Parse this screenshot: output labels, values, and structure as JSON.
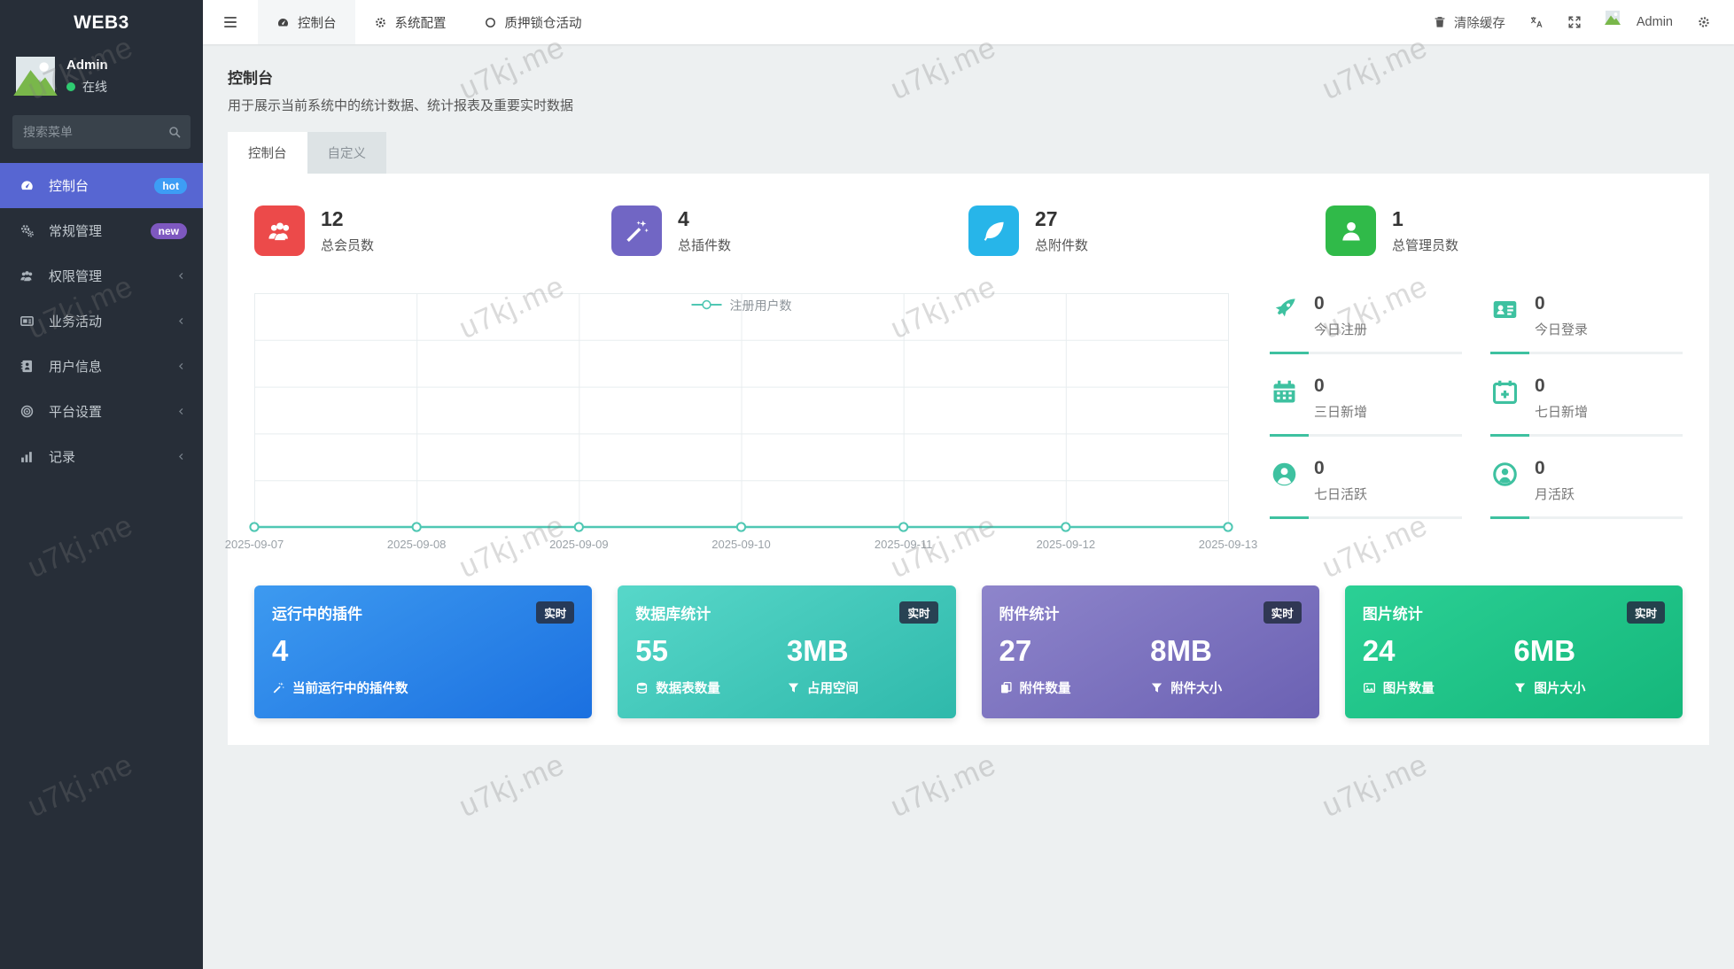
{
  "app": {
    "brand": "WEB3"
  },
  "watermark": {
    "text": "u7kj.me"
  },
  "sidebar": {
    "user": {
      "name": "Admin",
      "status_label": "在线"
    },
    "search": {
      "placeholder": "搜索菜单"
    },
    "items": [
      {
        "label": "控制台",
        "icon": "dashboard",
        "badge": "hot",
        "active": true
      },
      {
        "label": "常规管理",
        "icon": "cogs",
        "badge": "new"
      },
      {
        "label": "权限管理",
        "icon": "users",
        "chevron": true
      },
      {
        "label": "业务活动",
        "icon": "newspaper",
        "chevron": true
      },
      {
        "label": "用户信息",
        "icon": "address-book",
        "chevron": true
      },
      {
        "label": "平台设置",
        "icon": "bullseye",
        "chevron": true
      },
      {
        "label": "记录",
        "icon": "bar-chart",
        "chevron": true
      }
    ]
  },
  "topbar": {
    "tabs": [
      {
        "label": "控制台",
        "icon": "dashboard",
        "active": true
      },
      {
        "label": "系统配置",
        "icon": "gear"
      },
      {
        "label": "质押锁仓活动",
        "icon": "circle-o"
      }
    ],
    "clear_cache": "清除缓存",
    "user": "Admin"
  },
  "page": {
    "title": "控制台",
    "subtitle": "用于展示当前系统中的统计数据、统计报表及重要实时数据",
    "tabs": [
      {
        "label": "控制台",
        "active": true
      },
      {
        "label": "自定义"
      }
    ]
  },
  "summary_stats": [
    {
      "value": "12",
      "label": "总会员数",
      "icon": "users",
      "color": "#ec4a4a"
    },
    {
      "value": "4",
      "label": "总插件数",
      "icon": "magic-wand",
      "color": "#7166c4"
    },
    {
      "value": "27",
      "label": "总附件数",
      "icon": "leaf",
      "color": "#27b5e9"
    },
    {
      "value": "1",
      "label": "总管理员数",
      "icon": "user",
      "color": "#30ba49"
    }
  ],
  "chart_data": {
    "type": "line",
    "x": [
      "2025-09-07",
      "2025-09-08",
      "2025-09-09",
      "2025-09-10",
      "2025-09-11",
      "2025-09-12",
      "2025-09-13"
    ],
    "series": [
      {
        "name": "注册用户数",
        "values": [
          0,
          0,
          0,
          0,
          0,
          0,
          0
        ]
      }
    ],
    "title": "",
    "xlabel": "",
    "ylabel": "",
    "ylim": [
      0,
      1
    ],
    "grid": true,
    "legend_position": "top-center",
    "line_color": "#4fc7b3"
  },
  "mini_stats": [
    {
      "value": "0",
      "label": "今日注册",
      "icon": "rocket"
    },
    {
      "value": "0",
      "label": "今日登录",
      "icon": "id-card"
    },
    {
      "value": "0",
      "label": "三日新增",
      "icon": "calendar"
    },
    {
      "value": "0",
      "label": "七日新增",
      "icon": "calendar-plus"
    },
    {
      "value": "0",
      "label": "七日活跃",
      "icon": "user-circle"
    },
    {
      "value": "0",
      "label": "月活跃",
      "icon": "user-circle-o"
    }
  ],
  "panels": [
    {
      "title": "运行中的插件",
      "badge": "实时",
      "gradient": "linear-gradient(150deg,#3d9af0,#1b70e0)",
      "metrics": [
        {
          "value": "4",
          "label": "当前运行中的插件数",
          "icon": "magic-wand"
        }
      ]
    },
    {
      "title": "数据库统计",
      "badge": "实时",
      "gradient": "linear-gradient(150deg,#57d7c9,#2fb9ab)",
      "metrics": [
        {
          "value": "55",
          "label": "数据表数量",
          "icon": "database"
        },
        {
          "value": "3MB",
          "label": "占用空间",
          "icon": "filter"
        }
      ]
    },
    {
      "title": "附件统计",
      "badge": "实时",
      "gradient": "linear-gradient(150deg,#8e85cb,#6b61b3)",
      "metrics": [
        {
          "value": "27",
          "label": "附件数量",
          "icon": "copy"
        },
        {
          "value": "8MB",
          "label": "附件大小",
          "icon": "filter"
        }
      ]
    },
    {
      "title": "图片统计",
      "badge": "实时",
      "gradient": "linear-gradient(150deg,#2bd095,#15b77b)",
      "metrics": [
        {
          "value": "24",
          "label": "图片数量",
          "icon": "image"
        },
        {
          "value": "6MB",
          "label": "图片大小",
          "icon": "filter"
        }
      ]
    }
  ]
}
